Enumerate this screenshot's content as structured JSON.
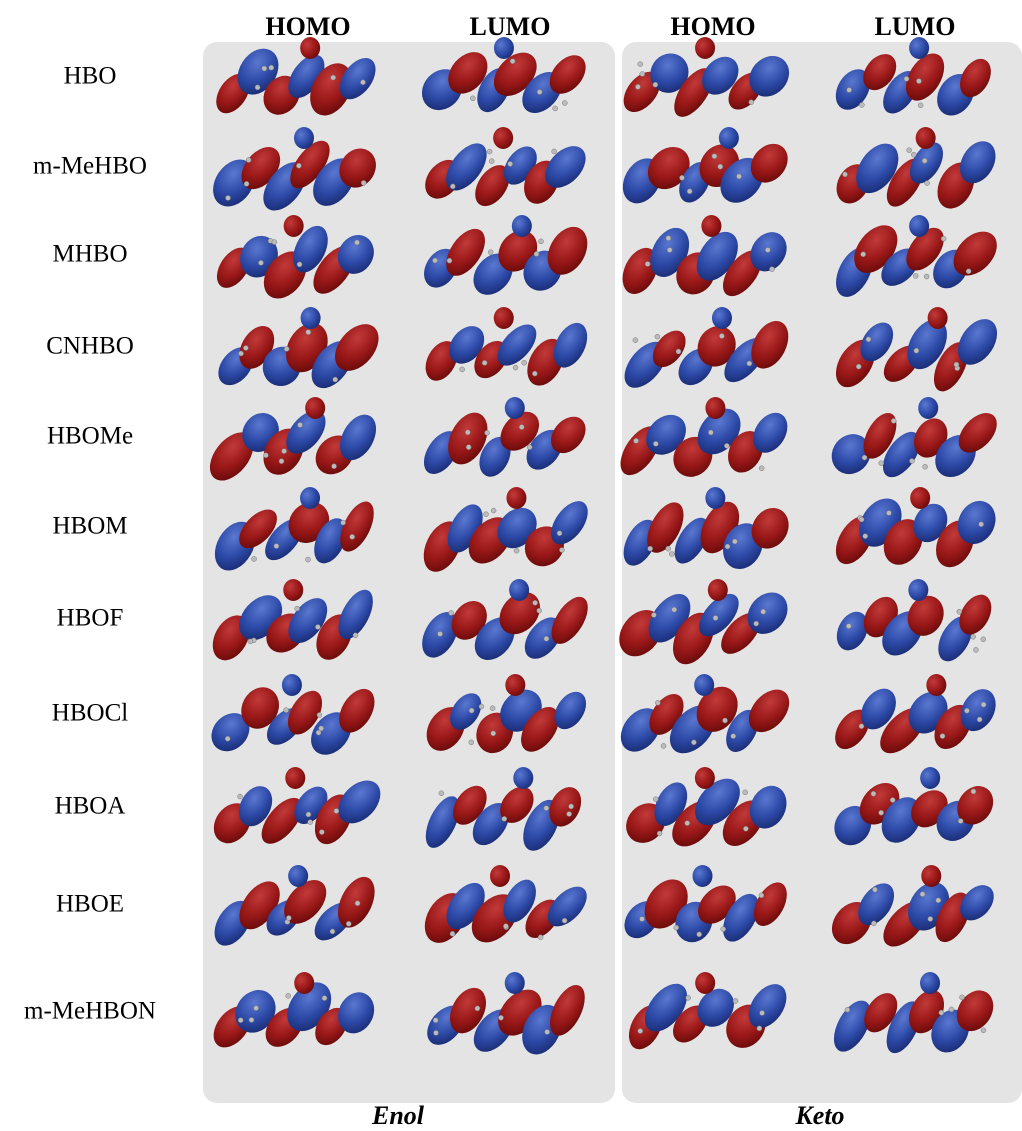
{
  "column_headers": [
    "HOMO",
    "LUMO",
    "HOMO",
    "LUMO"
  ],
  "rows": [
    "HBO",
    "m-MeHBO",
    "MHBO",
    "CNHBO",
    "HBOMe",
    "HBOM",
    "HBOF",
    "HBOCl",
    "HBOA",
    "HBOE",
    "m-MeHBON"
  ],
  "panels": [
    "Enol",
    "Keto"
  ]
}
